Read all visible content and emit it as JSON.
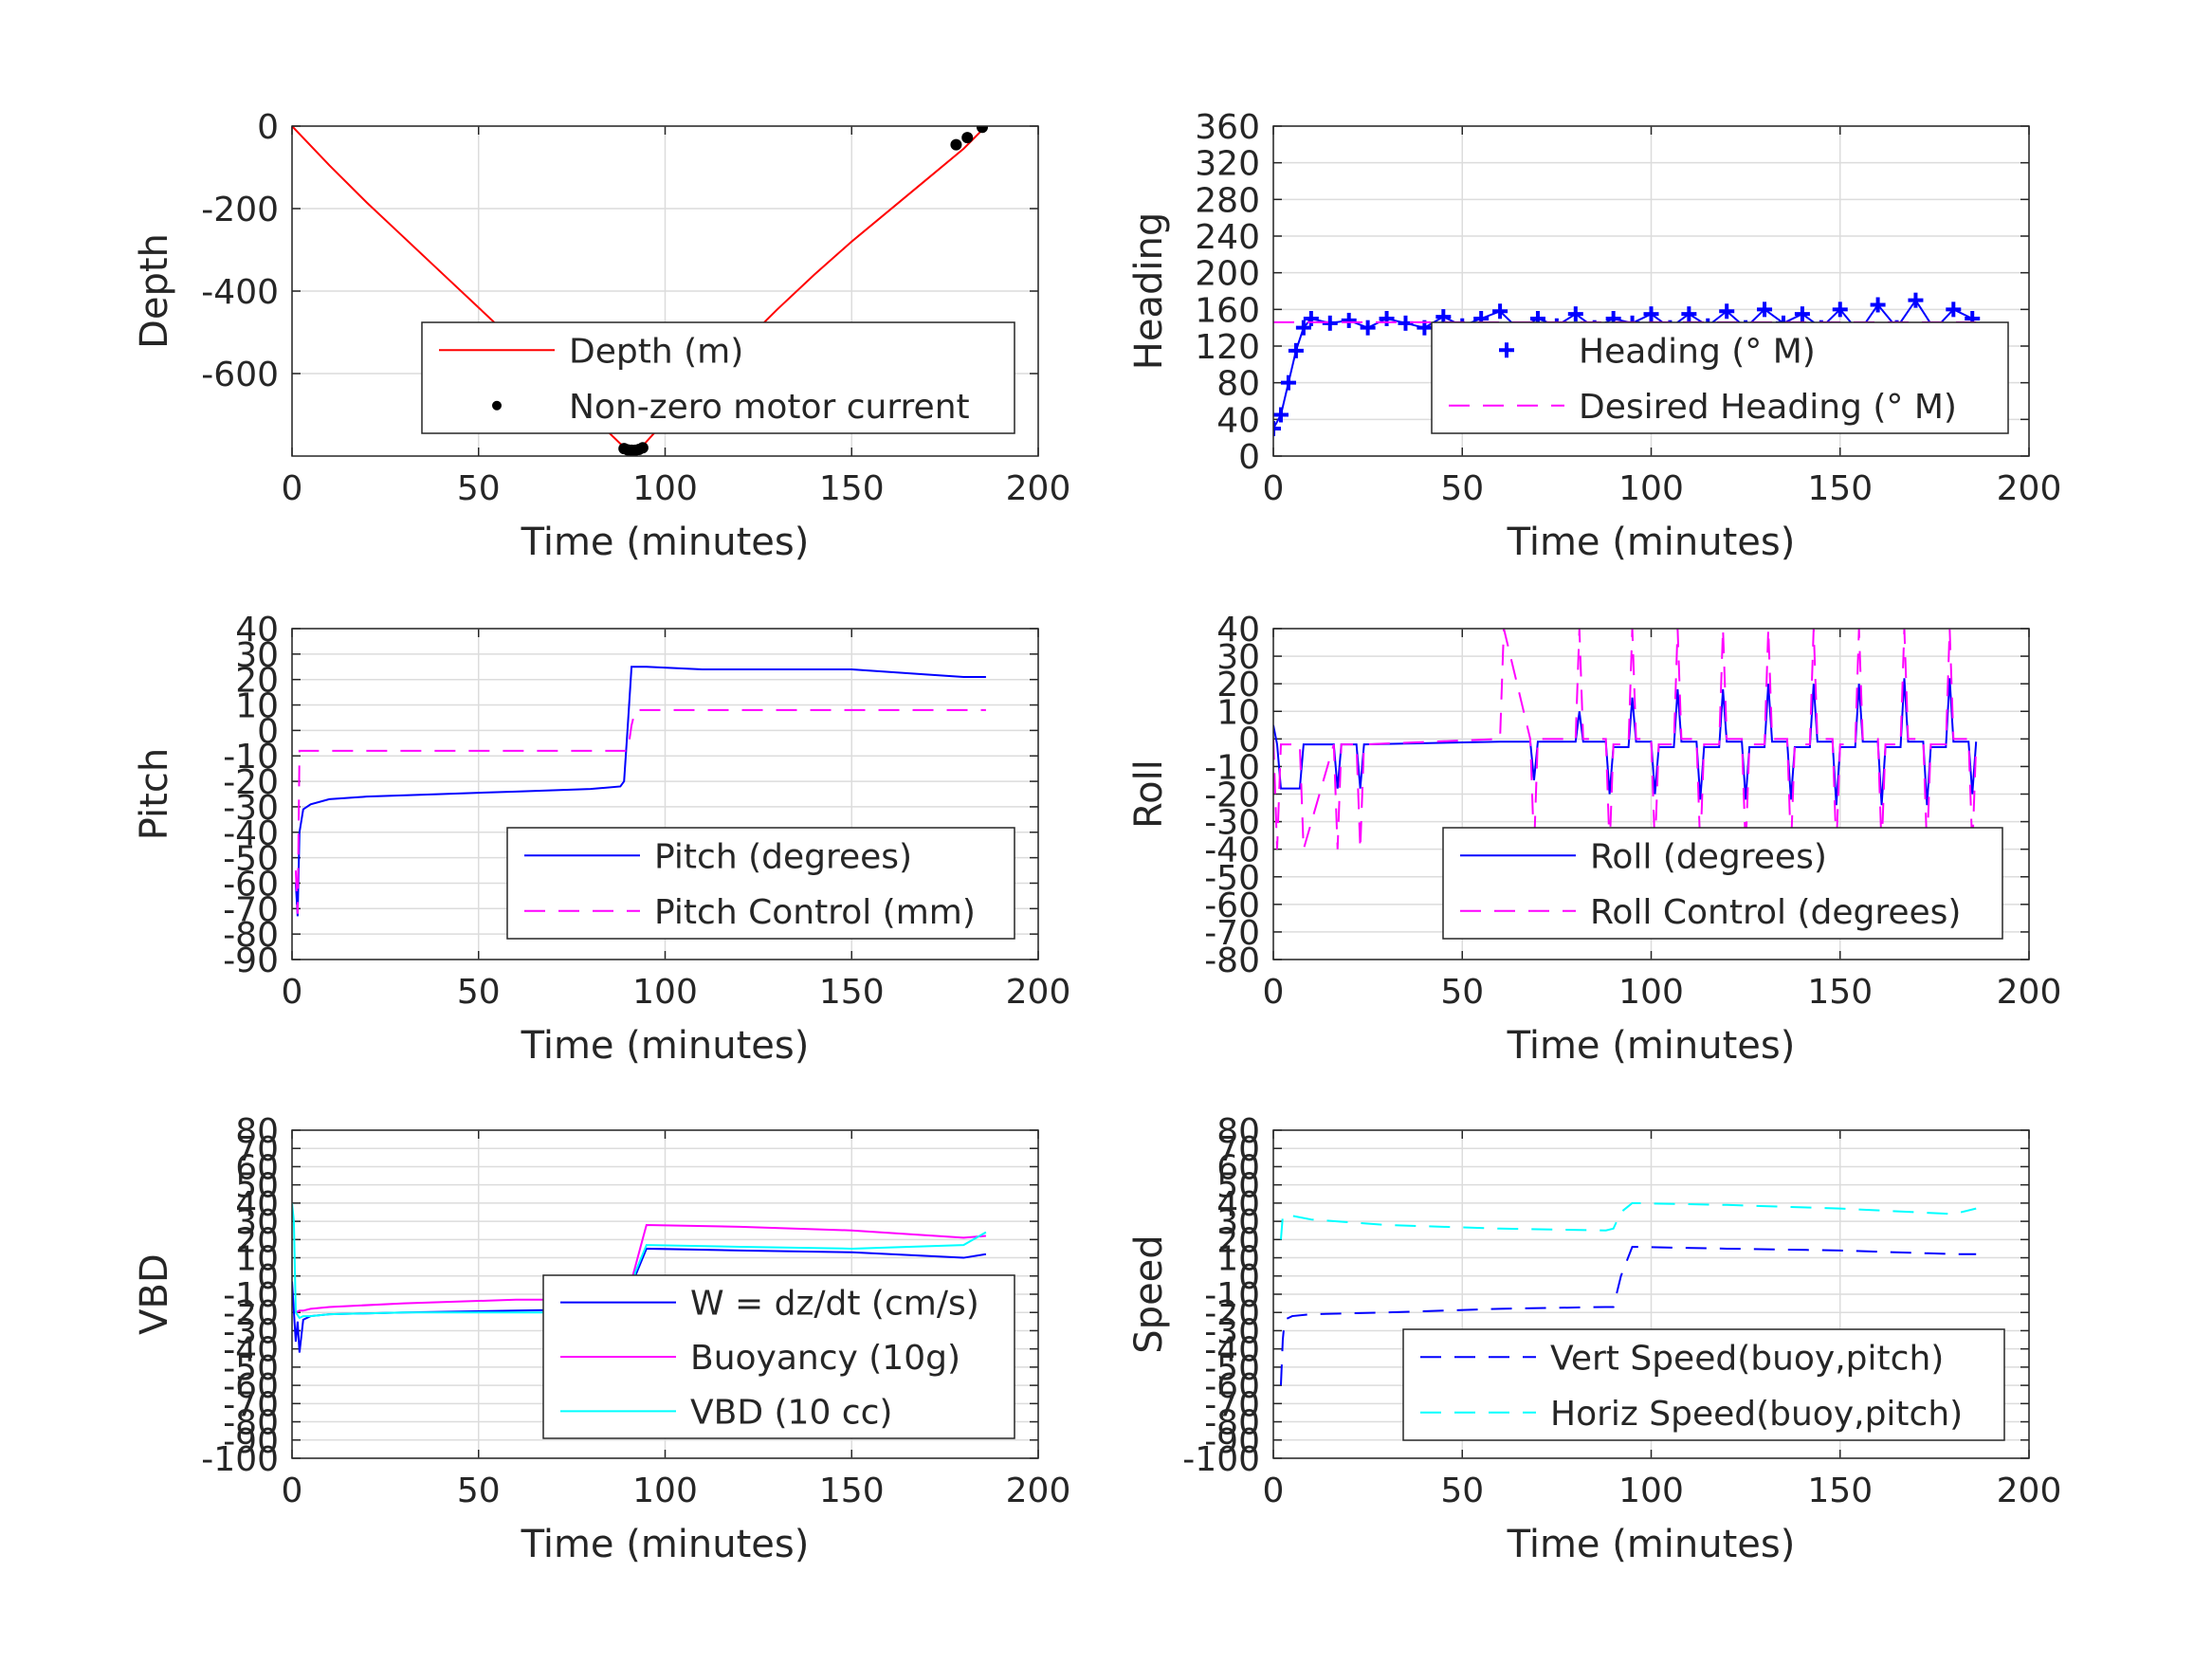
{
  "chart_data": [
    {
      "id": "depth",
      "type": "line",
      "xlabel": "Time (minutes)",
      "ylabel": "Depth",
      "xlim": [
        0,
        200
      ],
      "ylim": [
        -800,
        0
      ],
      "xticks": [
        "0",
        "50",
        "100",
        "150",
        "200"
      ],
      "yticks": [
        "0",
        "-200",
        "-400",
        "-600"
      ],
      "ytick_values": [
        0,
        -200,
        -400,
        -600
      ],
      "grid": true,
      "legend": {
        "placement": "lower-right",
        "entries": [
          "Depth (m)",
          "Non-zero motor current"
        ]
      },
      "series": [
        {
          "name": "Depth (m)",
          "color": "#ff0000",
          "style": "solid",
          "x": [
            0,
            10,
            20,
            30,
            40,
            50,
            60,
            70,
            80,
            88,
            91,
            94,
            100,
            110,
            120,
            130,
            140,
            150,
            160,
            170,
            180,
            186
          ],
          "y": [
            0,
            -95,
            -185,
            -270,
            -355,
            -440,
            -525,
            -610,
            -700,
            -770,
            -785,
            -775,
            -715,
            -625,
            -535,
            -445,
            -360,
            -280,
            -205,
            -130,
            -55,
            0
          ]
        },
        {
          "name": "Non-zero motor current",
          "color": "#000000",
          "style": "dots",
          "x": [
            89,
            90,
            91,
            92,
            93,
            94,
            178,
            181,
            185
          ],
          "y": [
            -782,
            -785,
            -786,
            -786,
            -784,
            -780,
            -45,
            -28,
            -3
          ]
        }
      ]
    },
    {
      "id": "heading",
      "type": "line",
      "xlabel": "Time (minutes)",
      "ylabel": "Heading",
      "xlim": [
        0,
        200
      ],
      "ylim": [
        0,
        360
      ],
      "xticks": [
        "0",
        "50",
        "100",
        "150",
        "200"
      ],
      "yticks": [
        "0",
        "40",
        "80",
        "120",
        "160",
        "200",
        "240",
        "280",
        "320",
        "360"
      ],
      "ytick_values": [
        0,
        40,
        80,
        120,
        160,
        200,
        240,
        280,
        320,
        360
      ],
      "grid": true,
      "legend": {
        "placement": "lower-right",
        "entries": [
          "Heading (° M)",
          "Desired Heading (° M)"
        ]
      },
      "series": [
        {
          "name": "Heading (° M)",
          "color": "#0000ff",
          "style": "markers",
          "x": [
            0,
            2,
            4,
            6,
            8,
            10,
            15,
            20,
            25,
            30,
            35,
            40,
            45,
            50,
            55,
            60,
            65,
            70,
            75,
            80,
            85,
            90,
            95,
            100,
            105,
            110,
            115,
            120,
            125,
            130,
            135,
            140,
            145,
            150,
            155,
            160,
            165,
            170,
            175,
            180,
            185
          ],
          "y": [
            30,
            45,
            80,
            115,
            140,
            150,
            145,
            148,
            140,
            150,
            145,
            140,
            152,
            142,
            150,
            158,
            138,
            150,
            142,
            155,
            140,
            150,
            145,
            155,
            140,
            155,
            142,
            158,
            140,
            160,
            145,
            155,
            140,
            160,
            135,
            165,
            140,
            170,
            138,
            160,
            150
          ]
        },
        {
          "name": "Desired Heading (° M)",
          "color": "#ff00ff",
          "style": "dashed",
          "x": [
            0,
            186
          ],
          "y": [
            146,
            146
          ]
        }
      ]
    },
    {
      "id": "pitch",
      "type": "line",
      "xlabel": "Time (minutes)",
      "ylabel": "Pitch",
      "xlim": [
        0,
        200
      ],
      "ylim": [
        -90,
        40
      ],
      "xticks": [
        "0",
        "50",
        "100",
        "150",
        "200"
      ],
      "yticks": [
        "40",
        "30",
        "20",
        "10",
        "0",
        "-10",
        "-20",
        "-30",
        "-40",
        "-50",
        "-60",
        "-70",
        "-80",
        "-90"
      ],
      "ytick_values": [
        40,
        30,
        20,
        10,
        0,
        -10,
        -20,
        -30,
        -40,
        -50,
        -60,
        -70,
        -80,
        -90
      ],
      "grid": true,
      "legend": {
        "placement": "lower-right",
        "entries": [
          "Pitch (degrees)",
          "Pitch Control (mm)"
        ]
      },
      "series": [
        {
          "name": "Pitch (degrees)",
          "color": "#0000ff",
          "style": "solid",
          "x": [
            1,
            1.5,
            2,
            3,
            5,
            10,
            20,
            40,
            60,
            80,
            88,
            89,
            90,
            91,
            95,
            110,
            130,
            150,
            170,
            180,
            186
          ],
          "y": [
            -60,
            -73,
            -40,
            -31,
            -29,
            -27,
            -26,
            -25,
            -24,
            -23,
            -22,
            -20,
            2,
            25,
            25,
            24,
            24,
            24,
            22,
            21,
            21
          ]
        },
        {
          "name": "Pitch Control (mm)",
          "color": "#ff00ff",
          "style": "dashed",
          "x": [
            1,
            1.5,
            2,
            3,
            90,
            91,
            92,
            94,
            186
          ],
          "y": [
            -55,
            -72,
            -8,
            -8,
            -8,
            2,
            8,
            8,
            8
          ]
        }
      ]
    },
    {
      "id": "roll",
      "type": "line",
      "xlabel": "Time (minutes)",
      "ylabel": "Roll",
      "xlim": [
        0,
        200
      ],
      "ylim": [
        -80,
        40
      ],
      "xticks": [
        "0",
        "50",
        "100",
        "150",
        "200"
      ],
      "yticks": [
        "40",
        "30",
        "20",
        "10",
        "0",
        "-10",
        "-20",
        "-30",
        "-40",
        "-50",
        "-60",
        "-70",
        "-80"
      ],
      "ytick_values": [
        40,
        30,
        20,
        10,
        0,
        -10,
        -20,
        -30,
        -40,
        -50,
        -60,
        -70,
        -80
      ],
      "grid": true,
      "legend": {
        "placement": "lower-right",
        "entries": [
          "Roll (degrees)",
          "Roll Control (degrees)"
        ]
      },
      "series": [
        {
          "name": "Roll (degrees)",
          "color": "#0000ff",
          "style": "solid",
          "x": [
            0,
            1,
            2,
            3,
            7,
            8,
            16,
            17,
            18,
            22,
            23,
            24,
            60,
            61,
            68,
            69,
            70,
            80,
            81,
            82,
            88,
            89,
            90,
            94,
            95,
            96,
            100,
            101,
            102,
            106,
            107,
            108,
            112,
            113,
            114,
            118,
            119,
            120,
            124,
            125,
            126,
            130,
            131,
            132,
            136,
            137,
            138,
            142,
            143,
            144,
            148,
            149,
            150,
            154,
            155,
            156,
            160,
            161,
            162,
            166,
            167,
            168,
            172,
            173,
            174,
            178,
            179,
            180,
            184,
            185,
            186
          ],
          "y": [
            5,
            -2,
            -18,
            -18,
            -18,
            -2,
            -2,
            -18,
            -2,
            -2,
            -18,
            -2,
            -1,
            -1,
            -1,
            -15,
            -1,
            -1,
            10,
            -1,
            -1,
            -20,
            -3,
            -3,
            15,
            -1,
            -1,
            -20,
            -3,
            -3,
            18,
            -1,
            -1,
            -22,
            -3,
            -3,
            18,
            -1,
            -1,
            -22,
            -3,
            -3,
            20,
            -1,
            -1,
            -22,
            -3,
            -3,
            20,
            -1,
            -1,
            -24,
            -3,
            -3,
            20,
            -1,
            -1,
            -24,
            -3,
            -3,
            22,
            -1,
            -1,
            -24,
            -3,
            -3,
            22,
            -1,
            -1,
            -20,
            -1
          ]
        },
        {
          "name": "Roll Control (degrees)",
          "color": "#ff00ff",
          "style": "dashed",
          "x": [
            0,
            1,
            2,
            3,
            7,
            8,
            16,
            17,
            18,
            22,
            23,
            24,
            60,
            61,
            68,
            69,
            70,
            80,
            81,
            82,
            88,
            89,
            90,
            94,
            95,
            96,
            100,
            101,
            102,
            106,
            107,
            108,
            112,
            113,
            114,
            118,
            119,
            120,
            124,
            125,
            126,
            130,
            131,
            132,
            136,
            137,
            138,
            142,
            143,
            144,
            148,
            149,
            150,
            154,
            155,
            156,
            160,
            161,
            162,
            166,
            167,
            168,
            172,
            173,
            174,
            178,
            179,
            180,
            184,
            185,
            186
          ],
          "y": [
            0,
            -40,
            -2,
            -2,
            -2,
            -40,
            -2,
            -40,
            -2,
            -2,
            -40,
            -2,
            0,
            40,
            0,
            -40,
            0,
            0,
            40,
            0,
            0,
            -40,
            -2,
            -2,
            40,
            0,
            0,
            -40,
            -2,
            -2,
            40,
            0,
            0,
            -40,
            -2,
            -2,
            40,
            0,
            0,
            -40,
            -2,
            -2,
            40,
            0,
            0,
            -40,
            -2,
            -2,
            40,
            0,
            0,
            -40,
            -2,
            -2,
            40,
            0,
            0,
            -40,
            -2,
            -2,
            40,
            0,
            0,
            -40,
            -2,
            -2,
            40,
            0,
            0,
            -40,
            -2
          ]
        }
      ]
    },
    {
      "id": "vbd",
      "type": "line",
      "xlabel": "Time (minutes)",
      "ylabel": "VBD",
      "xlim": [
        0,
        200
      ],
      "ylim": [
        -100,
        80
      ],
      "xticks": [
        "0",
        "50",
        "100",
        "150",
        "200"
      ],
      "yticks": [
        "80",
        "70",
        "60",
        "50",
        "40",
        "30",
        "20",
        "10",
        "0",
        "-10",
        "-20",
        "-30",
        "-40",
        "-50",
        "-60",
        "-70",
        "-80",
        "-90",
        "-100"
      ],
      "ytick_values": [
        80,
        70,
        60,
        50,
        40,
        30,
        20,
        10,
        0,
        -10,
        -20,
        -30,
        -40,
        -50,
        -60,
        -70,
        -80,
        -90,
        -100
      ],
      "grid": true,
      "legend": {
        "placement": "lower-right",
        "entries": [
          "W = dz/dt (cm/s)",
          "Buoyancy (10g)",
          "VBD (10 cc)"
        ]
      },
      "series": [
        {
          "name": "W = dz/dt (cm/s)",
          "color": "#0000ff",
          "style": "solid",
          "x": [
            0,
            1,
            1.5,
            2,
            3,
            5,
            10,
            30,
            60,
            88,
            90,
            92,
            95,
            120,
            150,
            180,
            186
          ],
          "y": [
            -3,
            -36,
            -25,
            -42,
            -24,
            -22,
            -21,
            -20,
            -19,
            -18,
            -18,
            0,
            15,
            14,
            13,
            10,
            12
          ]
        },
        {
          "name": "Buoyancy (10g)",
          "color": "#ff00ff",
          "style": "solid",
          "x": [
            1,
            2,
            3,
            5,
            10,
            30,
            60,
            88,
            90,
            95,
            120,
            150,
            180,
            186
          ],
          "y": [
            -20,
            -19,
            -19,
            -18,
            -17,
            -15,
            -13,
            -13,
            -10,
            28,
            27,
            25,
            21,
            22
          ]
        },
        {
          "name": "VBD (10 cc)",
          "color": "#00ffff",
          "style": "solid",
          "x": [
            0,
            0.5,
            1,
            2,
            3,
            5,
            10,
            30,
            60,
            88,
            90,
            92,
            95,
            120,
            150,
            180,
            186
          ],
          "y": [
            40,
            30,
            -20,
            -23,
            -22,
            -22,
            -21,
            -20,
            -20,
            -20,
            -19,
            2,
            17,
            16,
            15,
            17,
            24
          ]
        }
      ]
    },
    {
      "id": "speed",
      "type": "line",
      "xlabel": "Time (minutes)",
      "ylabel": "Speed",
      "xlim": [
        0,
        200
      ],
      "ylim": [
        -100,
        80
      ],
      "xticks": [
        "0",
        "50",
        "100",
        "150",
        "200"
      ],
      "yticks": [
        "80",
        "70",
        "60",
        "50",
        "40",
        "30",
        "20",
        "10",
        "0",
        "-10",
        "-20",
        "-30",
        "-40",
        "-50",
        "-60",
        "-70",
        "-80",
        "-90",
        "-100"
      ],
      "ytick_values": [
        80,
        70,
        60,
        50,
        40,
        30,
        20,
        10,
        0,
        -10,
        -20,
        -30,
        -40,
        -50,
        -60,
        -70,
        -80,
        -90,
        -100
      ],
      "grid": true,
      "legend": {
        "placement": "lower-right",
        "entries": [
          "Vert Speed(buoy,pitch)",
          "Horiz Speed(buoy,pitch)"
        ]
      },
      "series": [
        {
          "name": "Vert Speed(buoy,pitch)",
          "color": "#0000ff",
          "style": "dashed",
          "x": [
            2,
            2.5,
            3,
            5,
            10,
            30,
            60,
            88,
            90,
            92,
            95,
            120,
            150,
            180,
            186
          ],
          "y": [
            -60,
            -35,
            -24,
            -22,
            -21,
            -20,
            -18,
            -17,
            -17,
            0,
            16,
            15,
            14,
            12,
            12
          ]
        },
        {
          "name": "Horiz Speed(buoy,pitch)",
          "color": "#00ffff",
          "style": "dashed",
          "x": [
            2,
            2.5,
            3,
            5,
            10,
            30,
            60,
            88,
            90,
            92,
            95,
            120,
            150,
            180,
            186
          ],
          "y": [
            20,
            33,
            33,
            33,
            31,
            28,
            26,
            25,
            26,
            35,
            40,
            39,
            37,
            34,
            37
          ]
        }
      ]
    }
  ]
}
